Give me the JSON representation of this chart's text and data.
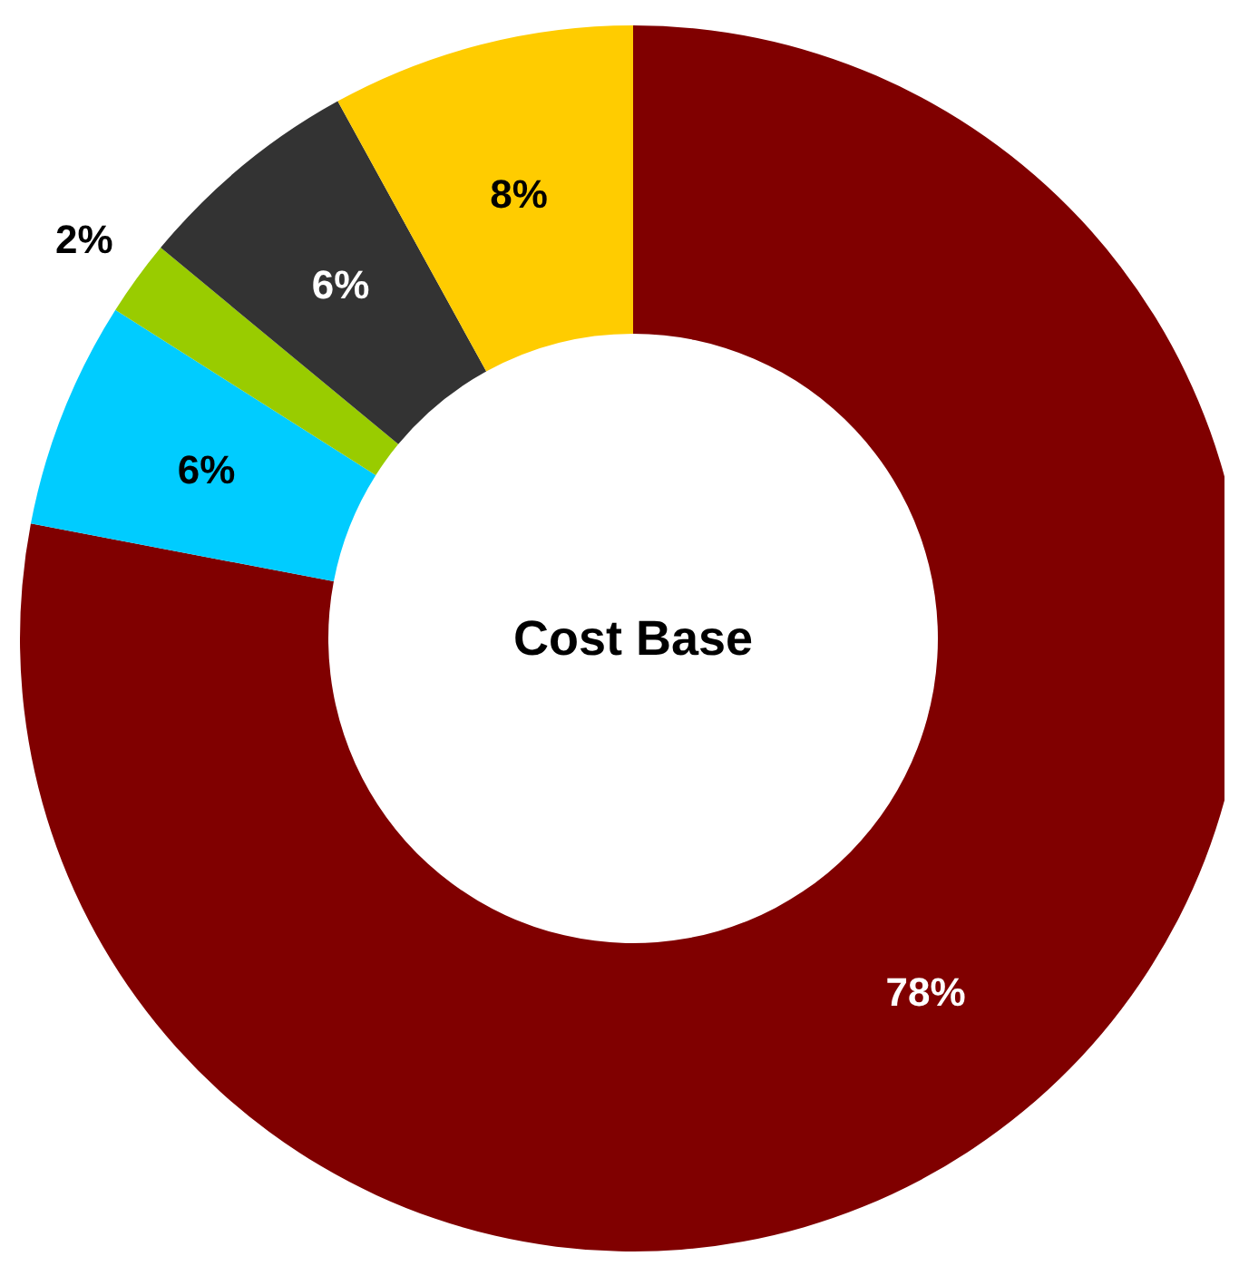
{
  "chart_data": {
    "type": "donut",
    "title": "Cost Base",
    "categories": [
      null,
      null,
      null,
      null,
      null
    ],
    "values": [
      78,
      6,
      2,
      6,
      8
    ],
    "colors": [
      "#800000",
      "#00ccff",
      "#99cc00",
      "#333333",
      "#ffcc00"
    ],
    "value_labels": [
      "78%",
      "6%",
      "2%",
      "6%",
      "8%"
    ]
  }
}
